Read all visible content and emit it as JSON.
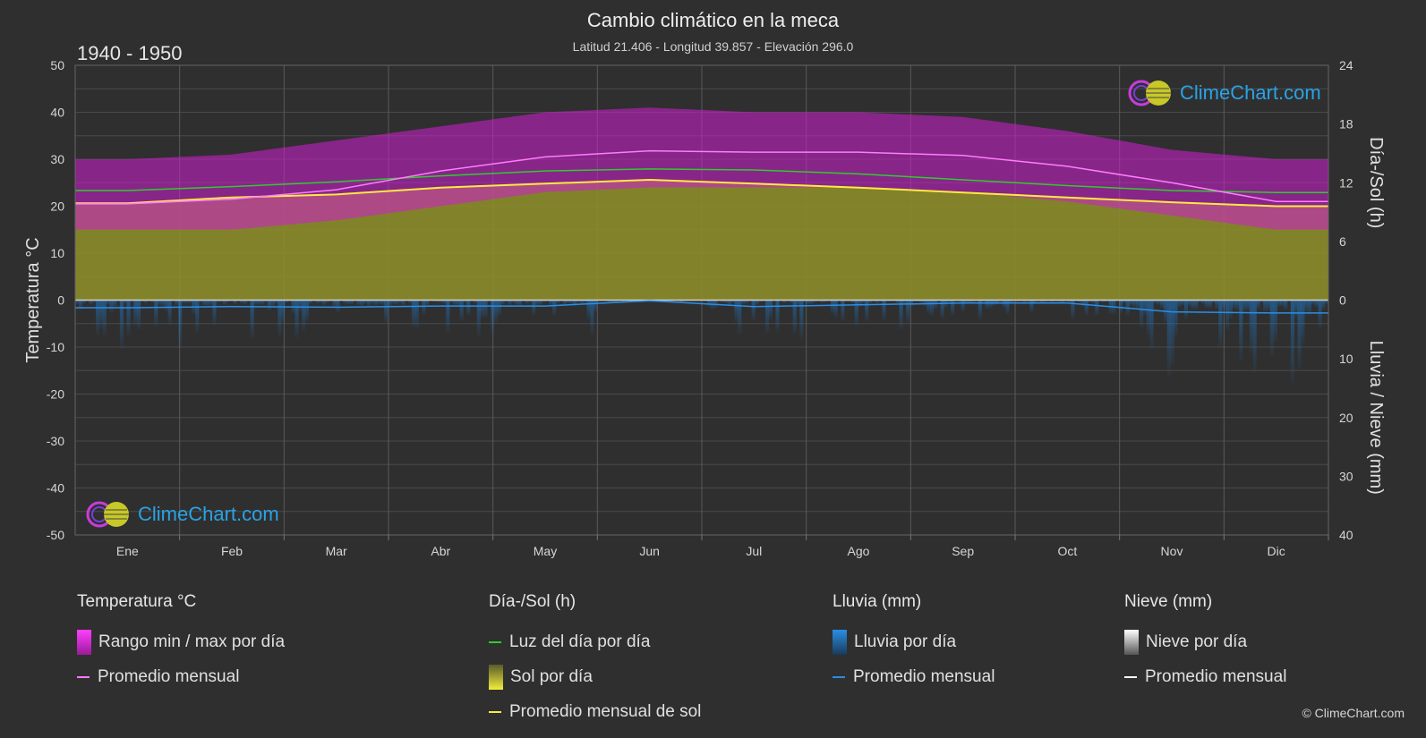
{
  "header": {
    "title": "Cambio climático en la meca",
    "subtitle": "Latitud 21.406 - Longitud 39.857 - Elevación 296.0",
    "period": "1940 - 1950"
  },
  "logo": {
    "text": "ClimeChart.com"
  },
  "copyright": "© ClimeChart.com",
  "colors": {
    "background": "#2f2f2f",
    "temp_range": "#d21ed2",
    "temp_avg": "#ff7cff",
    "daylight": "#2ecc2e",
    "sunshine": "#8c8c2a",
    "sun_avg": "#ffea40",
    "rain": "#1e78c8",
    "rain_avg": "#2a8ee6",
    "snow_avg": "#ffffff"
  },
  "legend": {
    "temperature": {
      "heading": "Temperatura °C",
      "range_label": "Rango min / max por día",
      "avg_label": "Promedio mensual"
    },
    "sun": {
      "heading": "Día-/Sol (h)",
      "daylight_label": "Luz del día por día",
      "sun_label": "Sol por día",
      "sun_avg_label": "Promedio mensual de sol"
    },
    "rain": {
      "heading": "Lluvia (mm)",
      "rain_label": "Lluvia por día",
      "avg_label": "Promedio mensual"
    },
    "snow": {
      "heading": "Nieve (mm)",
      "snow_label": "Nieve por día",
      "avg_label": "Promedio mensual"
    }
  },
  "chart_data": {
    "type": "area",
    "categories": [
      "Ene",
      "Feb",
      "Mar",
      "Abr",
      "May",
      "Jun",
      "Jul",
      "Ago",
      "Sep",
      "Oct",
      "Nov",
      "Dic"
    ],
    "left_axis": {
      "label": "Temperatura °C",
      "ticks": [
        50,
        40,
        30,
        20,
        10,
        0,
        -10,
        -20,
        -30,
        -40,
        -50
      ],
      "ylim": [
        -50,
        50
      ]
    },
    "right_axis_top": {
      "label": "Día-/Sol (h)",
      "ticks": [
        24,
        18,
        12,
        6,
        0
      ],
      "ylim": [
        0,
        24
      ]
    },
    "right_axis_bottom": {
      "label": "Lluvia / Nieve (mm)",
      "ticks": [
        0,
        10,
        20,
        30,
        40
      ],
      "ylim": [
        0,
        40
      ]
    },
    "grid": true,
    "series": [
      {
        "name": "Rango min / max por día (max)",
        "unit": "°C",
        "values": [
          30,
          31,
          34,
          37,
          40,
          41,
          40,
          40,
          39,
          36,
          32,
          30
        ]
      },
      {
        "name": "Rango min / max por día (min)",
        "unit": "°C",
        "values": [
          15,
          15,
          17,
          20,
          23,
          24,
          24,
          24,
          23,
          21,
          18,
          15
        ]
      },
      {
        "name": "Promedio mensual",
        "unit": "°C",
        "values": [
          20.5,
          21.5,
          23.5,
          27.5,
          30.5,
          31.8,
          31.5,
          31.5,
          30.8,
          28.5,
          25,
          21
        ]
      },
      {
        "name": "Luz del día por día",
        "unit": "h",
        "values": [
          11.2,
          11.6,
          12.1,
          12.7,
          13.2,
          13.4,
          13.3,
          12.9,
          12.3,
          11.7,
          11.2,
          11.0
        ]
      },
      {
        "name": "Sol por día",
        "unit": "h",
        "values": [
          9.9,
          10.5,
          10.8,
          11.5,
          11.9,
          12.3,
          11.9,
          11.5,
          11.0,
          10.5,
          10.0,
          9.6
        ]
      },
      {
        "name": "Promedio mensual de sol",
        "unit": "h",
        "values": [
          9.9,
          10.5,
          10.8,
          11.5,
          11.9,
          12.3,
          11.9,
          11.5,
          11.0,
          10.5,
          10.0,
          9.6
        ]
      },
      {
        "name": "Lluvia por día (promedio mensual)",
        "unit": "mm",
        "values": [
          1.3,
          1.1,
          1.2,
          1.0,
          1.0,
          0.1,
          1.1,
          0.8,
          0.5,
          0.5,
          2.0,
          2.2
        ]
      }
    ]
  }
}
